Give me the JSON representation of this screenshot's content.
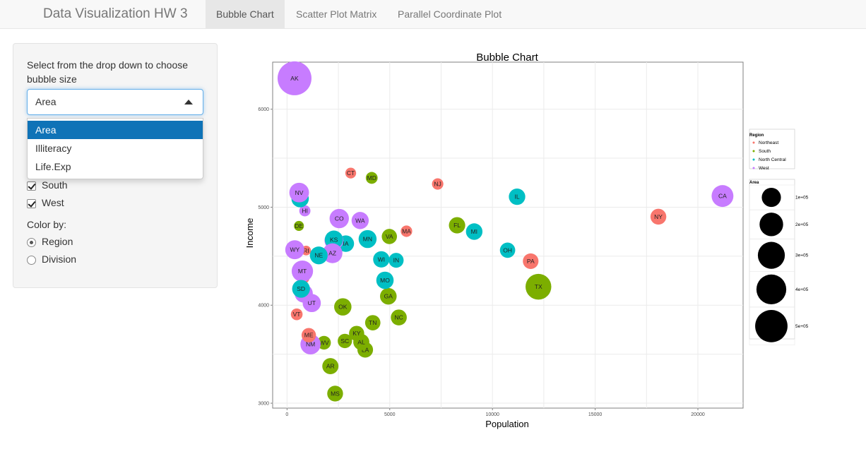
{
  "navbar": {
    "brand": "Data Visualization HW 3",
    "tabs": [
      {
        "label": "Bubble Chart",
        "active": true
      },
      {
        "label": "Scatter Plot Matrix",
        "active": false
      },
      {
        "label": "Parallel Coordinate Plot",
        "active": false
      }
    ]
  },
  "sidebar": {
    "size_label": "Select from the drop down to choose bubble size",
    "size_label_line1": "Select from the drop down to choose",
    "size_label_line2": "bubble size",
    "size_select": {
      "value": "Area",
      "options": [
        "Area",
        "Illiteracy",
        "Life.Exp"
      ]
    },
    "region_checks": [
      {
        "label": "South",
        "checked": true
      },
      {
        "label": "West",
        "checked": true
      }
    ],
    "color_by_label": "Color by:",
    "color_by_options": [
      {
        "label": "Region",
        "selected": true
      },
      {
        "label": "Division",
        "selected": false
      }
    ]
  },
  "chart_data": {
    "type": "scatter",
    "title": "Bubble Chart",
    "xlabel": "Population",
    "ylabel": "Income",
    "xlim": [
      -700,
      22200
    ],
    "ylim": [
      2950,
      6480
    ],
    "xticks": [
      0,
      5000,
      10000,
      15000,
      20000
    ],
    "yticks": [
      3000,
      4000,
      5000,
      6000
    ],
    "grid": true,
    "legend_position": "right",
    "colors": {
      "Northeast": "#f8766d",
      "South": "#7cae00",
      "North Central": "#00bfc4",
      "West": "#c77cff"
    },
    "legend_region_title": "Region",
    "legend_regions": [
      "Northeast",
      "South",
      "North Central",
      "West"
    ],
    "legend_size_title": "Area",
    "legend_sizes": [
      {
        "label": "1e+05",
        "value": 100000
      },
      {
        "label": "2e+05",
        "value": 200000
      },
      {
        "label": "3e+05",
        "value": 300000
      },
      {
        "label": "4e+05",
        "value": 400000
      },
      {
        "label": "5e+05",
        "value": 500000
      }
    ],
    "points": [
      {
        "state": "AK",
        "population": 365,
        "income": 6315,
        "area": 566432,
        "region": "West"
      },
      {
        "state": "CA",
        "population": 21198,
        "income": 5114,
        "area": 156361,
        "region": "West"
      },
      {
        "state": "NY",
        "population": 18076,
        "income": 4903,
        "area": 47831,
        "region": "Northeast"
      },
      {
        "state": "TX",
        "population": 12237,
        "income": 4188,
        "area": 262134,
        "region": "South"
      },
      {
        "state": "IL",
        "population": 11197,
        "income": 5107,
        "area": 55748,
        "region": "North Central"
      },
      {
        "state": "PA",
        "population": 11860,
        "income": 4449,
        "area": 44966,
        "region": "Northeast"
      },
      {
        "state": "OH",
        "population": 10735,
        "income": 4561,
        "area": 40975,
        "region": "North Central"
      },
      {
        "state": "MI",
        "population": 9111,
        "income": 4751,
        "area": 56817,
        "region": "North Central"
      },
      {
        "state": "FL",
        "population": 8277,
        "income": 4815,
        "area": 54090,
        "region": "South"
      },
      {
        "state": "NJ",
        "population": 7333,
        "income": 5237,
        "area": 7521,
        "region": "Northeast"
      },
      {
        "state": "MA",
        "population": 5814,
        "income": 4755,
        "area": 7826,
        "region": "Northeast"
      },
      {
        "state": "NC",
        "population": 5441,
        "income": 3875,
        "area": 48798,
        "region": "South"
      },
      {
        "state": "IN",
        "population": 5313,
        "income": 4458,
        "area": 36097,
        "region": "North Central"
      },
      {
        "state": "GA",
        "population": 4931,
        "income": 4091,
        "area": 58073,
        "region": "South"
      },
      {
        "state": "VA",
        "population": 4981,
        "income": 4701,
        "area": 39780,
        "region": "South"
      },
      {
        "state": "MO",
        "population": 4767,
        "income": 4254,
        "area": 68995,
        "region": "North Central"
      },
      {
        "state": "WI",
        "population": 4589,
        "income": 4468,
        "area": 54464,
        "region": "North Central"
      },
      {
        "state": "TN",
        "population": 4173,
        "income": 3821,
        "area": 41328,
        "region": "South"
      },
      {
        "state": "MD",
        "population": 4122,
        "income": 5299,
        "area": 9891,
        "region": "South"
      },
      {
        "state": "MN",
        "population": 3921,
        "income": 4675,
        "area": 79289,
        "region": "North Central"
      },
      {
        "state": "LA",
        "population": 3806,
        "income": 3545,
        "area": 44930,
        "region": "South"
      },
      {
        "state": "AL",
        "population": 3615,
        "income": 3624,
        "area": 50708,
        "region": "South"
      },
      {
        "state": "WA",
        "population": 3559,
        "income": 4864,
        "area": 66570,
        "region": "West"
      },
      {
        "state": "KY",
        "population": 3387,
        "income": 3712,
        "area": 39650,
        "region": "South"
      },
      {
        "state": "CT",
        "population": 3100,
        "income": 5348,
        "area": 4862,
        "region": "Northeast"
      },
      {
        "state": "SC",
        "population": 2816,
        "income": 3635,
        "area": 30225,
        "region": "South"
      },
      {
        "state": "IA",
        "population": 2861,
        "income": 4628,
        "area": 55941,
        "region": "North Central"
      },
      {
        "state": "OK",
        "population": 2715,
        "income": 3983,
        "area": 68782,
        "region": "South"
      },
      {
        "state": "CO",
        "population": 2541,
        "income": 4884,
        "area": 103766,
        "region": "West"
      },
      {
        "state": "OR",
        "population": 2284,
        "income": 4660,
        "area": 96184,
        "region": "West"
      },
      {
        "state": "MS",
        "population": 2341,
        "income": 3098,
        "area": 47296,
        "region": "South"
      },
      {
        "state": "KS",
        "population": 2280,
        "income": 4669,
        "area": 81787,
        "region": "North Central"
      },
      {
        "state": "AZ",
        "population": 2212,
        "income": 4530,
        "area": 113417,
        "region": "West"
      },
      {
        "state": "AR",
        "population": 2110,
        "income": 3378,
        "area": 51945,
        "region": "South"
      },
      {
        "state": "WV",
        "population": 1799,
        "income": 3617,
        "area": 24070,
        "region": "South"
      },
      {
        "state": "NE",
        "population": 1544,
        "income": 4508,
        "area": 76483,
        "region": "North Central"
      },
      {
        "state": "UT",
        "population": 1203,
        "income": 4022,
        "area": 82096,
        "region": "West"
      },
      {
        "state": "NM",
        "population": 1144,
        "income": 3601,
        "area": 121412,
        "region": "West"
      },
      {
        "state": "ME",
        "population": 1058,
        "income": 3694,
        "area": 30920,
        "region": "Northeast"
      },
      {
        "state": "RI",
        "population": 931,
        "income": 4558,
        "area": 1049,
        "region": "Northeast"
      },
      {
        "state": "HI",
        "population": 868,
        "income": 4963,
        "area": 6425,
        "region": "West"
      },
      {
        "state": "ID",
        "population": 813,
        "income": 4119,
        "area": 82677,
        "region": "West"
      },
      {
        "state": "NH",
        "population": 812,
        "income": 4281,
        "area": 9027,
        "region": "Northeast"
      },
      {
        "state": "MT",
        "population": 746,
        "income": 4347,
        "area": 145587,
        "region": "West"
      },
      {
        "state": "SD",
        "population": 681,
        "income": 4167,
        "area": 75955,
        "region": "North Central"
      },
      {
        "state": "ND",
        "population": 637,
        "income": 5087,
        "area": 69273,
        "region": "North Central"
      },
      {
        "state": "NV",
        "population": 590,
        "income": 5149,
        "area": 109889,
        "region": "West"
      },
      {
        "state": "DE",
        "population": 579,
        "income": 4809,
        "area": 1982,
        "region": "South"
      },
      {
        "state": "VT",
        "population": 472,
        "income": 3907,
        "area": 9267,
        "region": "Northeast"
      },
      {
        "state": "WY",
        "population": 376,
        "income": 4566,
        "area": 97203,
        "region": "West"
      }
    ]
  }
}
